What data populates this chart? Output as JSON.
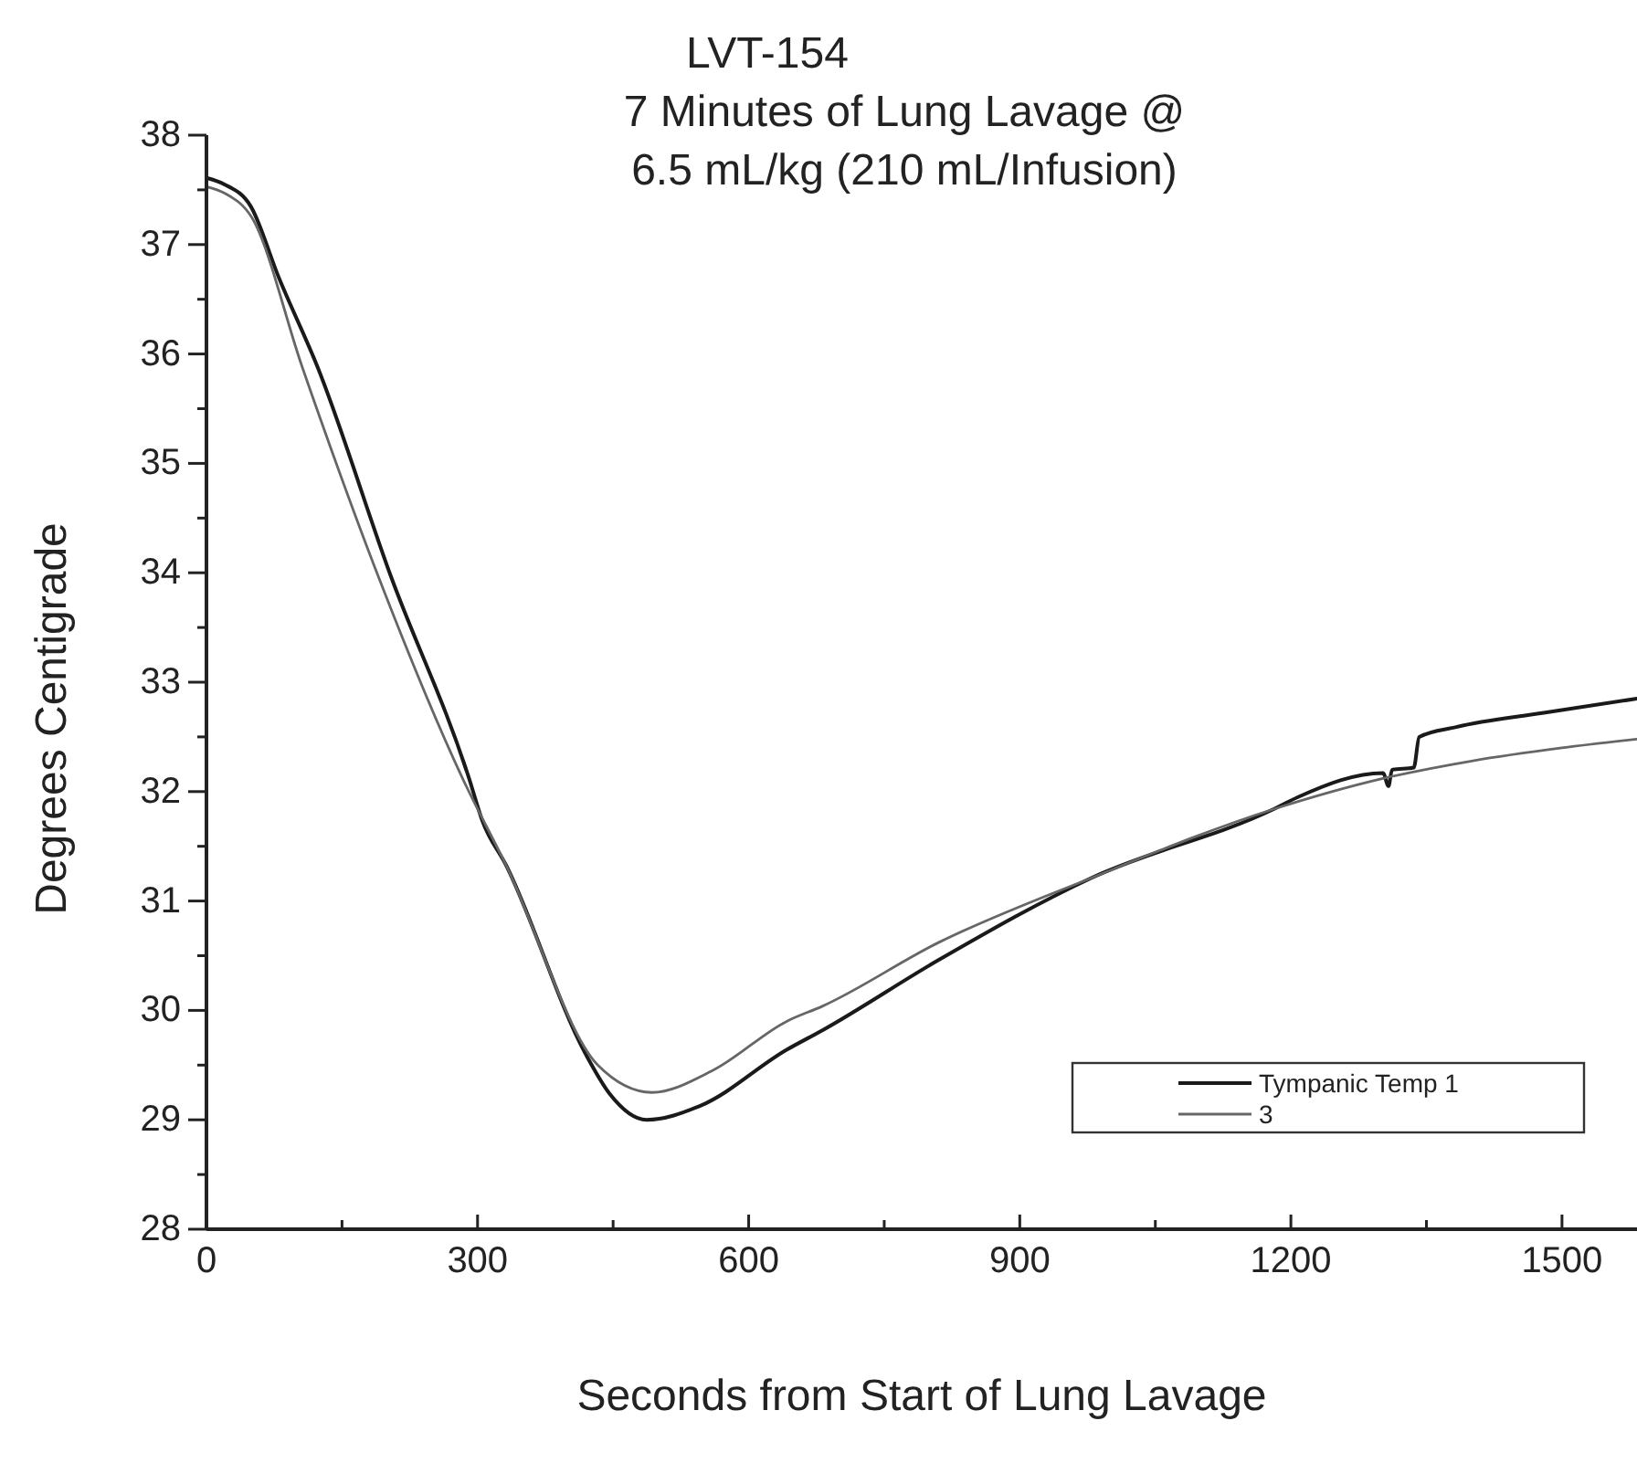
{
  "chart_data": {
    "type": "line",
    "title": "LVT-154\n7 Minutes of Lung Lavage @\n6.5 mL/kg (210 mL/Infusion)",
    "xlabel": "Seconds from Start of Lung Lavage",
    "ylabel": "Degrees Centigrade",
    "xlim": [
      0,
      1583
    ],
    "ylim": [
      28,
      38
    ],
    "xticks": [
      0,
      {
        "value": 150,
        "label": null
      },
      300,
      {
        "value": 450,
        "label": null
      },
      600,
      {
        "value": 750,
        "label": null
      },
      900,
      {
        "value": 1050,
        "label": null
      },
      1200,
      {
        "value": 1350,
        "label": null
      },
      1500
    ],
    "yticks": [
      28,
      {
        "value": 28.5,
        "label": null
      },
      29,
      {
        "value": 29.5,
        "label": null
      },
      30,
      {
        "value": 30.5,
        "label": null
      },
      31,
      {
        "value": 31.5,
        "label": null
      },
      32,
      {
        "value": 32.5,
        "label": null
      },
      33,
      {
        "value": 33.5,
        "label": null
      },
      34,
      {
        "value": 34.5,
        "label": null
      },
      35,
      {
        "value": 35.5,
        "label": null
      },
      36,
      {
        "value": 36.5,
        "label": null
      },
      37,
      {
        "value": 37.5,
        "label": null
      },
      38
    ],
    "grid": false,
    "legend": "bottom right",
    "marker": "none",
    "line_style": "solid",
    "series": [
      {
        "name": "Tympanic Temp 1",
        "color": "#1a1a1a",
        "x": [
          0,
          20,
          49,
          80,
          123,
          204,
          291,
          305,
          332,
          419,
          446,
          487,
          547,
          642,
          682,
          810,
          979,
          1181,
          1208,
          1302,
          1308,
          1312,
          1336,
          1342,
          1383,
          1480,
          1583
        ],
        "values": [
          37.61,
          37.55,
          37.35,
          36.7,
          35.88,
          33.97,
          32.11,
          31.74,
          31.32,
          29.61,
          29.24,
          29.0,
          29.13,
          29.64,
          29.82,
          30.46,
          31.21,
          31.84,
          31.95,
          32.17,
          32.05,
          32.2,
          32.22,
          32.5,
          32.59,
          32.72,
          32.85
        ]
      },
      {
        "name": "3",
        "color": "#666666",
        "x": [
          0,
          20,
          50,
          106,
          190,
          284,
          332,
          433,
          493,
          560,
          642,
          682,
          810,
          979,
          1181,
          1302,
          1400,
          1500,
          1583
        ],
        "values": [
          37.53,
          37.47,
          37.25,
          35.88,
          33.97,
          32.11,
          31.32,
          29.5,
          29.25,
          29.45,
          29.9,
          30.04,
          30.62,
          31.21,
          31.84,
          32.12,
          32.28,
          32.4,
          32.48
        ]
      }
    ]
  }
}
